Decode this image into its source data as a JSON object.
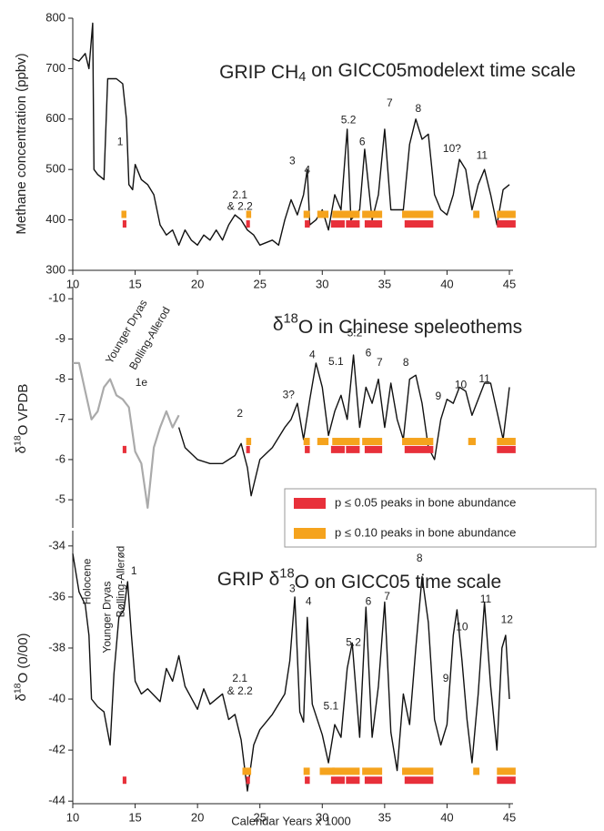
{
  "chart_data": [
    {
      "type": "line",
      "title": [
        {
          "text": "GRIP CH"
        },
        {
          "text": "4",
          "shift": "sub"
        },
        {
          "text": " on GICC05modelext time scale"
        }
      ],
      "ylabel": [
        {
          "text": "Methane concentration (ppbv)"
        }
      ],
      "xlim": [
        10,
        45
      ],
      "ylim": [
        300,
        800
      ],
      "xticks": [
        10,
        15,
        20,
        25,
        30,
        35,
        40,
        45
      ],
      "yticks": [
        300,
        400,
        500,
        600,
        700,
        800
      ],
      "series": [
        {
          "color": "#111111",
          "x": [
            10,
            10.5,
            11,
            11.3,
            11.6,
            11.7,
            12,
            12.5,
            12.8,
            13.5,
            14,
            14.3,
            14.5,
            14.8,
            15,
            15.5,
            16,
            16.5,
            17,
            17.5,
            18,
            18.5,
            19,
            19.5,
            20,
            20.5,
            21,
            21.5,
            22,
            22.5,
            23,
            23.5,
            24,
            24.5,
            25,
            26,
            26.5,
            27,
            27.5,
            28,
            28.5,
            28.8,
            29,
            29.5,
            30,
            30.5,
            31,
            31.5,
            32,
            32.3,
            33,
            33.4,
            34,
            34.5,
            35,
            35.5,
            36.5,
            37,
            37.5,
            38,
            38.5,
            39,
            39.5,
            40,
            40.5,
            41,
            41.5,
            42,
            42.5,
            43,
            43.5,
            44,
            44.5,
            45
          ],
          "values": [
            720,
            715,
            730,
            700,
            790,
            500,
            490,
            480,
            680,
            680,
            670,
            600,
            470,
            460,
            510,
            480,
            470,
            450,
            390,
            370,
            380,
            350,
            380,
            360,
            350,
            370,
            360,
            380,
            360,
            390,
            410,
            400,
            380,
            370,
            350,
            360,
            350,
            400,
            440,
            410,
            450,
            500,
            390,
            400,
            420,
            380,
            450,
            420,
            580,
            400,
            420,
            540,
            400,
            450,
            580,
            420,
            420,
            550,
            600,
            560,
            570,
            450,
            420,
            410,
            450,
            520,
            500,
            420,
            470,
            500,
            450,
            390,
            460,
            470
          ]
        }
      ],
      "bands": [
        {
          "color": "#f5a31d",
          "y": 411,
          "ranges": [
            [
              13.9,
              14.3
            ],
            [
              23.9,
              24.3
            ],
            [
              28.5,
              29.0
            ],
            [
              29.6,
              30.5
            ],
            [
              30.8,
              33.0
            ],
            [
              33.2,
              34.8
            ],
            [
              36.4,
              38.9
            ],
            [
              42.1,
              42.6
            ],
            [
              44.0,
              45.5
            ]
          ]
        },
        {
          "color": "#e8303a",
          "y": 392,
          "ranges": [
            [
              14.0,
              14.3
            ],
            [
              23.9,
              24.2
            ],
            [
              28.6,
              29.0
            ],
            [
              30.7,
              31.8
            ],
            [
              31.9,
              33.0
            ],
            [
              33.4,
              34.8
            ],
            [
              36.6,
              38.9
            ],
            [
              44.0,
              45.5
            ]
          ]
        }
      ],
      "annotations": [
        {
          "text": "1",
          "x": 13.8,
          "y": 554
        },
        {
          "text": "2.1",
          "x": 23.4,
          "y": 448
        },
        {
          "text": "& 2.2",
          "x": 23.4,
          "y": 426
        },
        {
          "text": "3",
          "x": 27.6,
          "y": 516
        },
        {
          "text": "4",
          "x": 28.8,
          "y": 498
        },
        {
          "text": "5.2",
          "x": 32.1,
          "y": 597
        },
        {
          "text": "6",
          "x": 33.2,
          "y": 554
        },
        {
          "text": "7",
          "x": 35.4,
          "y": 631
        },
        {
          "text": "8",
          "x": 37.7,
          "y": 620
        },
        {
          "text": "10?",
          "x": 40.4,
          "y": 540
        },
        {
          "text": "11",
          "x": 42.8,
          "y": 527
        }
      ]
    },
    {
      "type": "line",
      "title": [
        {
          "text": "δ"
        },
        {
          "text": "18",
          "shift": "sup"
        },
        {
          "text": "O in Chinese speleothems"
        }
      ],
      "ylabel": [
        {
          "text": "δ"
        },
        {
          "text": "18",
          "shift": "sup"
        },
        {
          "text": "O VPDB"
        }
      ],
      "xlim": [
        10,
        45
      ],
      "ylim": [
        -4.3,
        -10.3
      ],
      "yticks": [
        -10,
        -9,
        -8,
        -7,
        -6,
        -5
      ],
      "series": [
        {
          "color": "#aaaaaa",
          "x": [
            10,
            10.5,
            11,
            11.5,
            12,
            12.5,
            13,
            13.5,
            14,
            14.5,
            15,
            15.5,
            16,
            16.5,
            17,
            17.5,
            18,
            18.5
          ],
          "values": [
            -8.4,
            -8.4,
            -7.7,
            -7.0,
            -7.2,
            -7.8,
            -8.0,
            -7.6,
            -7.5,
            -7.3,
            -6.2,
            -5.9,
            -4.8,
            -6.3,
            -6.8,
            -7.2,
            -6.8,
            -7.1
          ]
        },
        {
          "color": "#111111",
          "x": [
            18.5,
            19,
            20,
            21,
            22,
            23,
            23.5,
            24,
            24.3,
            25,
            26,
            27,
            27.5,
            28,
            28.5,
            29,
            29.5,
            30,
            30.5,
            31,
            31.5,
            32,
            32.5,
            33,
            33.5,
            34,
            34.5,
            35,
            35.5,
            36,
            36.5,
            37,
            37.5,
            38,
            38.5,
            39,
            39.5,
            40,
            40.5,
            41,
            41.5,
            42,
            42.5,
            43,
            43.5,
            44,
            44.5,
            45
          ],
          "values": [
            -6.8,
            -6.3,
            -6.0,
            -5.9,
            -5.9,
            -6.1,
            -6.4,
            -5.8,
            -5.1,
            -6.0,
            -6.3,
            -6.8,
            -7.0,
            -7.4,
            -6.5,
            -7.5,
            -8.4,
            -7.8,
            -6.6,
            -7.2,
            -7.6,
            -7.0,
            -8.6,
            -6.8,
            -7.8,
            -7.4,
            -8.0,
            -6.8,
            -7.9,
            -7.0,
            -6.5,
            -8.0,
            -8.1,
            -7.4,
            -6.3,
            -6.0,
            -7.0,
            -7.5,
            -7.4,
            -7.8,
            -7.7,
            -7.1,
            -7.5,
            -7.9,
            -7.9,
            -7.2,
            -6.5,
            -7.8
          ]
        }
      ],
      "bands": [
        {
          "color": "#f5a31d",
          "y": -6.45,
          "ranges": [
            [
              23.9,
              24.3
            ],
            [
              28.5,
              29.0
            ],
            [
              29.6,
              30.5
            ],
            [
              30.8,
              33.0
            ],
            [
              33.2,
              34.8
            ],
            [
              36.4,
              38.9
            ],
            [
              41.7,
              42.3
            ],
            [
              44.0,
              45.5
            ]
          ]
        },
        {
          "color": "#e8303a",
          "y": -6.25,
          "ranges": [
            [
              14.0,
              14.3
            ],
            [
              23.9,
              24.2
            ],
            [
              28.6,
              29.0
            ],
            [
              30.7,
              31.8
            ],
            [
              31.9,
              33.0
            ],
            [
              33.4,
              34.8
            ],
            [
              36.6,
              38.9
            ],
            [
              44.0,
              45.5
            ]
          ]
        }
      ],
      "annotations": [
        {
          "text": "Younger Dryas",
          "x": 12.9,
          "y": -8.4,
          "rotate": -60
        },
        {
          "text": "Bolling-Allerod",
          "x": 14.8,
          "y": -8.25,
          "rotate": -60
        },
        {
          "text": "1e",
          "x": 15.5,
          "y": -7.9
        },
        {
          "text": "2",
          "x": 23.4,
          "y": -7.13
        },
        {
          "text": "3?",
          "x": 27.3,
          "y": -7.6
        },
        {
          "text": "4",
          "x": 29.2,
          "y": -8.6
        },
        {
          "text": "5.1",
          "x": 31.1,
          "y": -8.42
        },
        {
          "text": "5.2",
          "x": 32.6,
          "y": -9.14
        },
        {
          "text": "6",
          "x": 33.7,
          "y": -8.64
        },
        {
          "text": "7",
          "x": 34.6,
          "y": -8.4
        },
        {
          "text": "8",
          "x": 36.7,
          "y": -8.4
        },
        {
          "text": "9",
          "x": 39.3,
          "y": -7.56
        },
        {
          "text": "10",
          "x": 41.1,
          "y": -7.85
        },
        {
          "text": "11",
          "x": 43.0,
          "y": -8.0
        }
      ],
      "legend": [
        {
          "name": "p ≤ 0.05 peaks in bone abundance",
          "color": "#e8303a"
        },
        {
          "name": "p ≤ 0.10 peaks in bone abundance",
          "color": "#f5a31d"
        }
      ]
    },
    {
      "type": "line",
      "title": [
        {
          "text": "GRIP δ"
        },
        {
          "text": "18",
          "shift": "sup"
        },
        {
          "text": "O  on GICC05 time scale"
        }
      ],
      "ylabel": [
        {
          "text": "δ"
        },
        {
          "text": "18",
          "shift": "sup"
        },
        {
          "text": "O (0/00)"
        }
      ],
      "xlabel": "Calendar Years x 1000",
      "xlim": [
        10,
        45
      ],
      "ylim": [
        -44.1,
        -33.4
      ],
      "xticks": [
        10,
        15,
        20,
        25,
        30,
        35,
        40,
        45
      ],
      "yticks": [
        -44,
        -42,
        -40,
        -38,
        -36,
        -34
      ],
      "series": [
        {
          "color": "#111111",
          "x": [
            10,
            10.5,
            11,
            11.3,
            11.5,
            12,
            12.5,
            13,
            13.3,
            13.7,
            14.1,
            14.4,
            14.7,
            15,
            15.5,
            16,
            17,
            17.5,
            18,
            18.5,
            19,
            20,
            20.5,
            21,
            22,
            22.5,
            23,
            23.5,
            24,
            24.5,
            25,
            26,
            27,
            27.4,
            27.8,
            28.2,
            28.5,
            28.8,
            29.2,
            30,
            30.5,
            31,
            31.5,
            32,
            32.4,
            33,
            33.5,
            34,
            34.5,
            35,
            35.5,
            36,
            36.5,
            37,
            37.5,
            38,
            38.5,
            39,
            39.5,
            40,
            40.5,
            40.8,
            41.2,
            41.6,
            42,
            42.5,
            43,
            43.5,
            44,
            44.4,
            44.7,
            45
          ],
          "values": [
            -34.3,
            -35.8,
            -36.3,
            -37.5,
            -40.0,
            -40.3,
            -40.5,
            -41.8,
            -39.0,
            -36.8,
            -36.5,
            -35.4,
            -37.5,
            -39.3,
            -39.8,
            -39.6,
            -40.1,
            -38.8,
            -39.3,
            -38.3,
            -39.5,
            -40.4,
            -39.6,
            -40.2,
            -39.8,
            -40.8,
            -40.6,
            -41.6,
            -43.6,
            -41.8,
            -41.2,
            -40.6,
            -39.8,
            -38.5,
            -36.0,
            -40.5,
            -40.9,
            -36.8,
            -40.2,
            -41.4,
            -42.5,
            -41.0,
            -41.5,
            -38.8,
            -37.8,
            -41.5,
            -36.4,
            -41.5,
            -39.5,
            -36.2,
            -41.3,
            -42.8,
            -39.8,
            -41.0,
            -38.0,
            -35.2,
            -37.0,
            -40.8,
            -41.8,
            -41.0,
            -37.5,
            -36.5,
            -38.5,
            -40.8,
            -42.5,
            -39.8,
            -36.2,
            -39.5,
            -42.0,
            -38.0,
            -37.5,
            -40.0
          ]
        }
      ],
      "bands": [
        {
          "color": "#f5a31d",
          "y": -42.83,
          "ranges": [
            [
              23.6,
              24.3
            ],
            [
              28.5,
              29.0
            ],
            [
              29.8,
              31.0
            ],
            [
              30.8,
              33.0
            ],
            [
              33.2,
              34.8
            ],
            [
              36.4,
              38.9
            ],
            [
              42.1,
              42.6
            ],
            [
              44.0,
              45.5
            ]
          ]
        },
        {
          "color": "#e8303a",
          "y": -43.18,
          "ranges": [
            [
              14.0,
              14.3
            ],
            [
              23.9,
              24.2
            ],
            [
              28.6,
              29.0
            ],
            [
              30.7,
              31.8
            ],
            [
              31.9,
              33.0
            ],
            [
              33.4,
              34.8
            ],
            [
              36.6,
              38.9
            ],
            [
              44.0,
              45.5
            ]
          ]
        }
      ],
      "annotations": [
        {
          "text": "Holocene",
          "x": 11.2,
          "y": -36.3,
          "rotate": -90
        },
        {
          "text": "Younger Dryas",
          "x": 12.8,
          "y": -38.2,
          "rotate": -90
        },
        {
          "text": "Bølling-Allerød",
          "x": 13.9,
          "y": -36.8,
          "rotate": -90
        },
        {
          "text": "1",
          "x": 14.9,
          "y": -35.0
        },
        {
          "text": "2.1",
          "x": 23.4,
          "y": -39.2
        },
        {
          "text": "& 2.2",
          "x": 23.4,
          "y": -39.7
        },
        {
          "text": "3",
          "x": 27.6,
          "y": -35.7
        },
        {
          "text": "4",
          "x": 28.9,
          "y": -36.2
        },
        {
          "text": "5.1",
          "x": 30.7,
          "y": -40.3
        },
        {
          "text": "5.2",
          "x": 32.5,
          "y": -37.8
        },
        {
          "text": "6",
          "x": 33.7,
          "y": -36.2
        },
        {
          "text": "7",
          "x": 35.2,
          "y": -36.0
        },
        {
          "text": "8",
          "x": 37.8,
          "y": -34.5
        },
        {
          "text": "9",
          "x": 39.9,
          "y": -39.2
        },
        {
          "text": "10",
          "x": 41.2,
          "y": -37.2
        },
        {
          "text": "11",
          "x": 43.1,
          "y": -36.1
        },
        {
          "text": "12",
          "x": 44.8,
          "y": -36.9
        }
      ]
    }
  ]
}
